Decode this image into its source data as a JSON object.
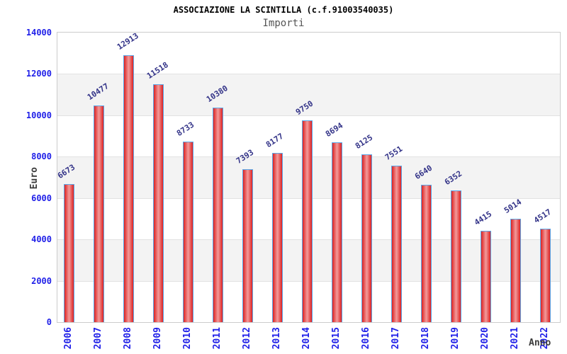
{
  "chart_data": {
    "type": "bar",
    "title": "ASSOCIAZIONE LA SCINTILLA (c.f.91003540035)",
    "subtitle": "Importi",
    "xlabel": "Anno",
    "ylabel": "Euro",
    "categories": [
      "2006",
      "2007",
      "2008",
      "2009",
      "2010",
      "2011",
      "2012",
      "2013",
      "2014",
      "2015",
      "2016",
      "2017",
      "2018",
      "2019",
      "2020",
      "2021",
      "2022"
    ],
    "values": [
      6673,
      10477,
      12913,
      11518,
      8733,
      10380,
      7393,
      8177,
      9750,
      8694,
      8125,
      7551,
      6640,
      6352,
      4415,
      5014,
      4517
    ],
    "ylim": [
      0,
      14000
    ],
    "ytick_step": 2000,
    "grid": true,
    "legend": "none",
    "band_fill": "alternating horizontal gray/white between gridlines",
    "colors": {
      "tick_label": "#1f1fe8",
      "value_label": "#333388",
      "band_gray": "#f3f3f3",
      "gridline": "#e2e2e2",
      "plot_border": "#cccccc",
      "bar_gradient_edge": "#dd2222",
      "bar_gradient_center": "#f29b9b",
      "bar_border": "#5aa7e8",
      "title": "#000000",
      "subtitle": "#555555",
      "axis_title": "#3a3a3a"
    }
  }
}
